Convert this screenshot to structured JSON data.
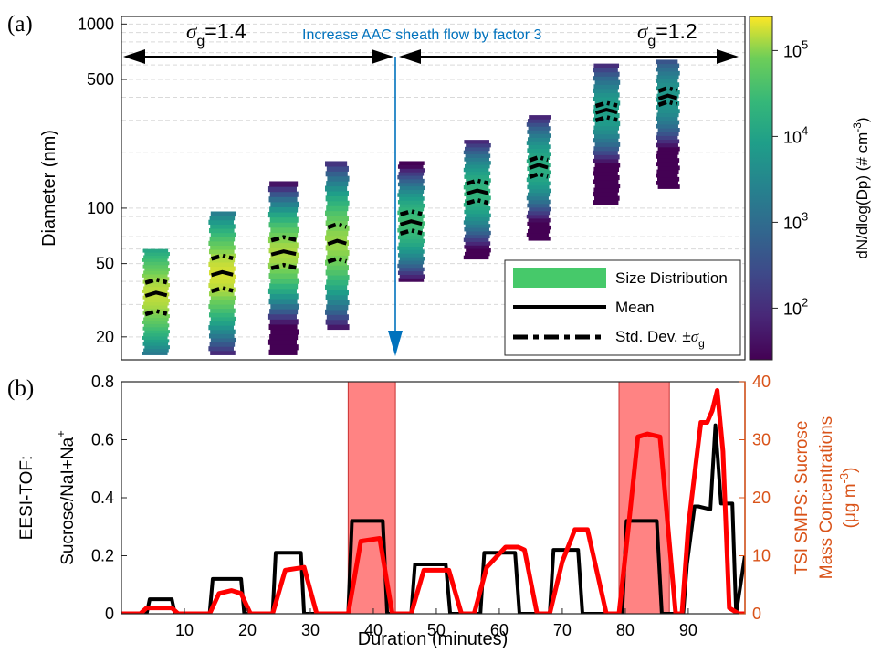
{
  "panel_labels": {
    "a": "(a)",
    "b": "(b)"
  },
  "annotations": {
    "sigma_left": "1.4",
    "sigma_right": "1.2",
    "sigma_symbol": "σ",
    "sigma_sub": "g",
    "sheath_text": "Increase AAC sheath flow by factor 3"
  },
  "colors": {
    "black_series": "#000000",
    "red_series": "#ff0000",
    "right_axis": "#d95319",
    "annotation_blue": "#0072bd",
    "shade": "#ff5a5a"
  },
  "chart_data": [
    {
      "panel": "a",
      "type": "heatmap",
      "title": "",
      "xlabel": "",
      "ylabel": "Diameter (nm)",
      "yscale": "log",
      "ylim": [
        15,
        1100
      ],
      "yticks": [
        20,
        50,
        100,
        500,
        1000
      ],
      "colorbar": {
        "label": "dN/dlog(Dp) (# cm",
        "label_sup": "-3",
        "label_end": ")",
        "scale": "log",
        "ticks": [
          "10",
          "10",
          "10",
          "10"
        ],
        "tick_exps": [
          "2",
          "3",
          "4",
          "5"
        ],
        "tick_values": [
          100,
          1000,
          10000,
          100000
        ],
        "range": [
          25,
          250000
        ],
        "colormap": "viridis"
      },
      "grid": "horizontal",
      "columns": [
        {
          "x0": 3.5,
          "x1": 7.5,
          "dmin": 16,
          "dmax": 60,
          "peak": 34,
          "lo": 27,
          "hi": 40,
          "peak_density": 150000
        },
        {
          "x0": 14.0,
          "x1": 18.0,
          "dmin": 16,
          "dmax": 96,
          "peak": 44,
          "lo": 36,
          "hi": 54,
          "peak_density": 180000
        },
        {
          "x0": 23.5,
          "x1": 28.0,
          "dmin": 16,
          "dmax": 140,
          "peak": 57,
          "lo": 48,
          "hi": 68,
          "peak_density": 130000
        },
        {
          "x0": 32.5,
          "x1": 36.0,
          "dmin": 22,
          "dmax": 180,
          "peak": 65,
          "lo": 52,
          "hi": 80,
          "peak_density": 110000
        },
        {
          "x0": 44.0,
          "x1": 48.0,
          "dmin": 40,
          "dmax": 180,
          "peak": 83,
          "lo": 74,
          "hi": 94,
          "peak_density": 30000
        },
        {
          "x0": 54.5,
          "x1": 58.5,
          "dmin": 53,
          "dmax": 235,
          "peak": 122,
          "lo": 108,
          "hi": 138,
          "peak_density": 20000
        },
        {
          "x0": 64.5,
          "x1": 68.0,
          "dmin": 67,
          "dmax": 320,
          "peak": 168,
          "lo": 150,
          "hi": 185,
          "peak_density": 15000
        },
        {
          "x0": 75.0,
          "x1": 79.0,
          "dmin": 105,
          "dmax": 610,
          "peak": 335,
          "lo": 305,
          "hi": 365,
          "peak_density": 9000
        },
        {
          "x0": 85.0,
          "x1": 88.5,
          "dmin": 128,
          "dmax": 640,
          "peak": 400,
          "lo": 370,
          "hi": 440,
          "peak_density": 6000
        }
      ],
      "legend": {
        "position": "bottom-right",
        "entries": [
          {
            "label": "Size Distribution",
            "style": "patch"
          },
          {
            "label": "Mean",
            "style": "solid"
          },
          {
            "label": "Std. Dev. ±",
            "label_symbol": "σ",
            "label_sub": "g",
            "style": "dashdot"
          }
        ]
      },
      "events": [
        {
          "x": 43.5,
          "label": "Increase AAC sheath flow by factor 3"
        }
      ],
      "ranges": [
        {
          "from": 0,
          "to": 43.5,
          "label": "σg=1.4"
        },
        {
          "from": 43.5,
          "to": 99,
          "label": "σg=1.2"
        }
      ]
    },
    {
      "panel": "b",
      "type": "line",
      "title": "",
      "xlabel": "Duration (minutes)",
      "xlim": [
        0,
        99
      ],
      "xticks": [
        10,
        20,
        30,
        40,
        50,
        60,
        70,
        80,
        90
      ],
      "ylabel_lines": [
        "EESI-TOF:",
        "Sucrose/NaI+Na"
      ],
      "ylabel_sup": "+",
      "ylim": [
        0,
        0.8
      ],
      "yticks": [
        0,
        0.2,
        0.4,
        0.6,
        0.8
      ],
      "y2label_lines": [
        "TSI SMPS: Sucrose",
        "Mass Concentrations"
      ],
      "y2label_unit": "(μg m",
      "y2label_unit_sup": "-3",
      "y2label_unit_end": ")",
      "y2lim": [
        0,
        40
      ],
      "y2ticks": [
        0,
        10,
        20,
        30,
        40
      ],
      "shaded_ranges": [
        [
          36,
          43.5
        ],
        [
          79,
          87
        ]
      ],
      "series": [
        {
          "axis": "left",
          "x": [
            0,
            4,
            4.5,
            8,
            8.5,
            10,
            14,
            14.5,
            19,
            19.5,
            24,
            24.5,
            28.5,
            29,
            36,
            36.6,
            41.5,
            42.2,
            46,
            46.6,
            51.5,
            52.2,
            57,
            57.6,
            62.5,
            63.2,
            68,
            68.6,
            72.5,
            73.2,
            79.5,
            80.2,
            85,
            85.8,
            89.2,
            89.8,
            91,
            91.6,
            93.5,
            94.3,
            95.2,
            95.7,
            97,
            97.6,
            99
          ],
          "y": [
            0,
            0,
            0.05,
            0.05,
            0,
            0,
            0,
            0.12,
            0.12,
            0,
            0,
            0.21,
            0.21,
            0,
            0,
            0.32,
            0.32,
            0,
            0,
            0.17,
            0.17,
            0,
            0,
            0.21,
            0.21,
            0,
            0,
            0.22,
            0.22,
            0,
            0,
            0.32,
            0.32,
            0,
            0,
            0.17,
            0.37,
            0.37,
            0.36,
            0.65,
            0.38,
            0.38,
            0.38,
            0,
            0.2
          ]
        },
        {
          "axis": "right",
          "x": [
            0,
            3,
            4,
            8,
            9,
            10,
            14,
            15.5,
            17.5,
            19,
            20.5,
            24,
            26,
            29,
            31,
            36,
            38,
            41,
            43,
            46,
            48,
            52,
            54,
            56,
            58,
            61,
            63,
            64,
            66,
            68,
            70,
            72,
            74,
            77,
            79,
            80.5,
            82,
            83.5,
            85.5,
            88,
            89,
            90,
            92,
            93,
            93.8,
            94.6,
            95.5,
            96.5,
            98,
            99
          ],
          "y": [
            0,
            0,
            1,
            1,
            0,
            0,
            0,
            3.5,
            4,
            3.5,
            0,
            0,
            7.5,
            8,
            0,
            0,
            12.5,
            13,
            0,
            0,
            7.5,
            7.5,
            0,
            0,
            8,
            11.5,
            11.5,
            11,
            0,
            0,
            9,
            14.5,
            14.5,
            0,
            0,
            15,
            30.5,
            31,
            30.5,
            0,
            0,
            15,
            33,
            33,
            35,
            38.5,
            28,
            1,
            0,
            0
          ]
        }
      ]
    }
  ]
}
